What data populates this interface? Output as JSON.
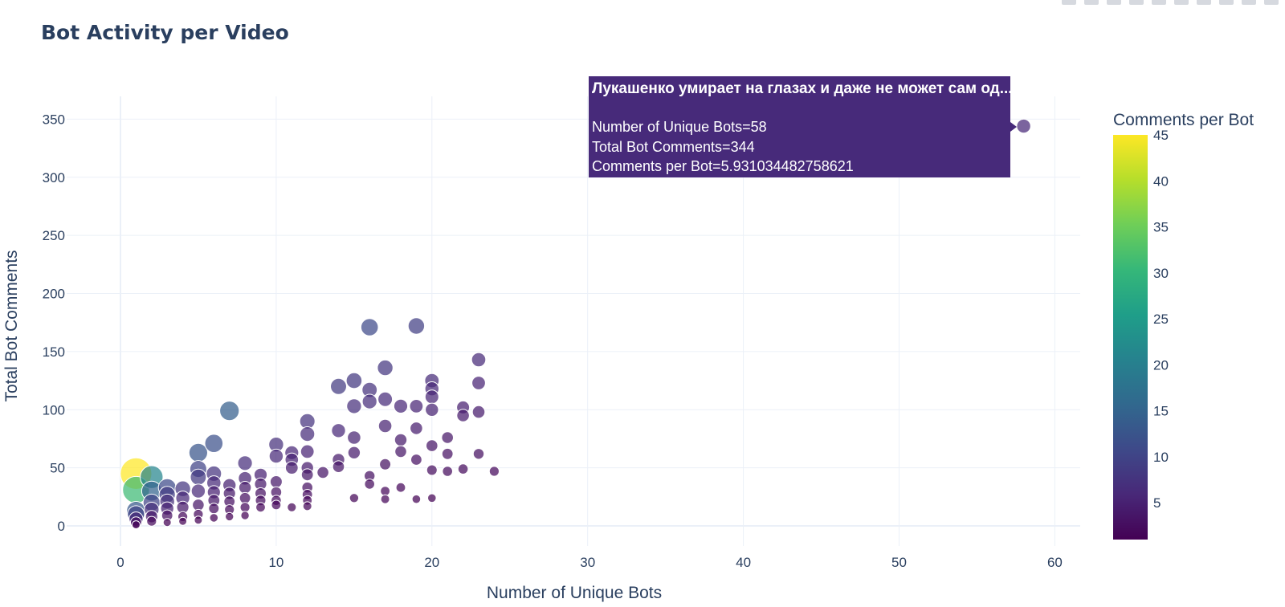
{
  "modebar_icons": [
    "camera-icon",
    "zoom-icon",
    "pan-icon",
    "box-select-icon",
    "lasso-icon",
    "zoom-in-icon",
    "zoom-out-icon",
    "autoscale-icon",
    "reset-icon",
    "plotly-logo-icon"
  ],
  "chart_data": {
    "type": "scatter",
    "title": "Bot Activity per Video",
    "xlabel": "Number of Unique Bots",
    "ylabel": "Total Bot Comments",
    "xlim": [
      -3.5,
      61.8
    ],
    "ylim": [
      -23,
      368
    ],
    "xticks": [
      0,
      10,
      20,
      30,
      40,
      50,
      60
    ],
    "yticks": [
      0,
      50,
      100,
      150,
      200,
      250,
      300,
      350
    ],
    "grid": true,
    "marker_size_by": "Comments per Bot",
    "colorbar": {
      "title": "Comments per Bot",
      "range": [
        1,
        45
      ],
      "ticks": [
        5,
        10,
        15,
        20,
        25,
        30,
        35,
        40,
        45
      ],
      "colorscale": "Viridis"
    },
    "points": [
      {
        "x": 1,
        "y": 45,
        "c": 45
      },
      {
        "x": 1,
        "y": 31,
        "c": 31
      },
      {
        "x": 2,
        "y": 42,
        "c": 21
      },
      {
        "x": 2,
        "y": 30,
        "c": 15
      },
      {
        "x": 2,
        "y": 20,
        "c": 10
      },
      {
        "x": 1,
        "y": 13,
        "c": 13
      },
      {
        "x": 1,
        "y": 10,
        "c": 10
      },
      {
        "x": 1,
        "y": 6,
        "c": 6
      },
      {
        "x": 1,
        "y": 3,
        "c": 3
      },
      {
        "x": 1,
        "y": 1,
        "c": 1
      },
      {
        "x": 2,
        "y": 14,
        "c": 7
      },
      {
        "x": 2,
        "y": 8,
        "c": 4
      },
      {
        "x": 2,
        "y": 4,
        "c": 2
      },
      {
        "x": 3,
        "y": 33,
        "c": 11
      },
      {
        "x": 3,
        "y": 27,
        "c": 9
      },
      {
        "x": 3,
        "y": 21,
        "c": 7
      },
      {
        "x": 3,
        "y": 15,
        "c": 5
      },
      {
        "x": 3,
        "y": 9,
        "c": 3
      },
      {
        "x": 3,
        "y": 3,
        "c": 1
      },
      {
        "x": 4,
        "y": 32,
        "c": 8
      },
      {
        "x": 4,
        "y": 24,
        "c": 6
      },
      {
        "x": 4,
        "y": 16,
        "c": 4
      },
      {
        "x": 4,
        "y": 8,
        "c": 2
      },
      {
        "x": 4,
        "y": 4,
        "c": 1
      },
      {
        "x": 5,
        "y": 63,
        "c": 12.6
      },
      {
        "x": 5,
        "y": 49,
        "c": 9.8
      },
      {
        "x": 5,
        "y": 42,
        "c": 8.4
      },
      {
        "x": 5,
        "y": 30,
        "c": 6
      },
      {
        "x": 5,
        "y": 18,
        "c": 3.6
      },
      {
        "x": 5,
        "y": 10,
        "c": 2
      },
      {
        "x": 5,
        "y": 5,
        "c": 1
      },
      {
        "x": 6,
        "y": 71,
        "c": 11.8
      },
      {
        "x": 6,
        "y": 45,
        "c": 7.5
      },
      {
        "x": 6,
        "y": 37,
        "c": 6.2
      },
      {
        "x": 6,
        "y": 29,
        "c": 4.8
      },
      {
        "x": 6,
        "y": 22,
        "c": 3.7
      },
      {
        "x": 6,
        "y": 15,
        "c": 2.5
      },
      {
        "x": 6,
        "y": 7,
        "c": 1.2
      },
      {
        "x": 7,
        "y": 99,
        "c": 14.1
      },
      {
        "x": 7,
        "y": 35,
        "c": 5
      },
      {
        "x": 7,
        "y": 28,
        "c": 4
      },
      {
        "x": 7,
        "y": 21,
        "c": 3
      },
      {
        "x": 7,
        "y": 14,
        "c": 2
      },
      {
        "x": 7,
        "y": 8,
        "c": 1.1
      },
      {
        "x": 8,
        "y": 54,
        "c": 6.8
      },
      {
        "x": 8,
        "y": 41,
        "c": 5.1
      },
      {
        "x": 8,
        "y": 33,
        "c": 4.1
      },
      {
        "x": 8,
        "y": 24,
        "c": 3
      },
      {
        "x": 8,
        "y": 16,
        "c": 2
      },
      {
        "x": 8,
        "y": 9,
        "c": 1.1
      },
      {
        "x": 9,
        "y": 44,
        "c": 4.9
      },
      {
        "x": 9,
        "y": 36,
        "c": 4
      },
      {
        "x": 9,
        "y": 28,
        "c": 3.1
      },
      {
        "x": 9,
        "y": 22,
        "c": 2.4
      },
      {
        "x": 9,
        "y": 16,
        "c": 1.8
      },
      {
        "x": 10,
        "y": 70,
        "c": 7
      },
      {
        "x": 10,
        "y": 60,
        "c": 6
      },
      {
        "x": 10,
        "y": 38,
        "c": 3.8
      },
      {
        "x": 10,
        "y": 29,
        "c": 2.9
      },
      {
        "x": 10,
        "y": 22,
        "c": 2.2
      },
      {
        "x": 10,
        "y": 18,
        "c": 1.8
      },
      {
        "x": 11,
        "y": 63,
        "c": 5.7
      },
      {
        "x": 11,
        "y": 57,
        "c": 5.2
      },
      {
        "x": 11,
        "y": 50,
        "c": 4.5
      },
      {
        "x": 11,
        "y": 16,
        "c": 1.5
      },
      {
        "x": 12,
        "y": 90,
        "c": 7.5
      },
      {
        "x": 12,
        "y": 79,
        "c": 6.6
      },
      {
        "x": 12,
        "y": 64,
        "c": 5.3
      },
      {
        "x": 12,
        "y": 50,
        "c": 4.2
      },
      {
        "x": 12,
        "y": 44,
        "c": 3.7
      },
      {
        "x": 12,
        "y": 33,
        "c": 2.8
      },
      {
        "x": 12,
        "y": 27,
        "c": 2.3
      },
      {
        "x": 12,
        "y": 22,
        "c": 1.8
      },
      {
        "x": 12,
        "y": 17,
        "c": 1.4
      },
      {
        "x": 13,
        "y": 46,
        "c": 3.5
      },
      {
        "x": 14,
        "y": 120,
        "c": 8.6
      },
      {
        "x": 14,
        "y": 82,
        "c": 5.9
      },
      {
        "x": 14,
        "y": 57,
        "c": 4.1
      },
      {
        "x": 14,
        "y": 51,
        "c": 3.6
      },
      {
        "x": 15,
        "y": 125,
        "c": 8.3
      },
      {
        "x": 15,
        "y": 103,
        "c": 6.9
      },
      {
        "x": 15,
        "y": 76,
        "c": 5.1
      },
      {
        "x": 15,
        "y": 63,
        "c": 4.2
      },
      {
        "x": 15,
        "y": 24,
        "c": 1.6
      },
      {
        "x": 16,
        "y": 171,
        "c": 10.7
      },
      {
        "x": 16,
        "y": 117,
        "c": 7.3
      },
      {
        "x": 16,
        "y": 107,
        "c": 6.7
      },
      {
        "x": 16,
        "y": 43,
        "c": 2.7
      },
      {
        "x": 16,
        "y": 36,
        "c": 2.2
      },
      {
        "x": 17,
        "y": 136,
        "c": 8
      },
      {
        "x": 17,
        "y": 109,
        "c": 6.4
      },
      {
        "x": 17,
        "y": 86,
        "c": 5.1
      },
      {
        "x": 17,
        "y": 53,
        "c": 3.1
      },
      {
        "x": 17,
        "y": 30,
        "c": 1.8
      },
      {
        "x": 17,
        "y": 23,
        "c": 1.4
      },
      {
        "x": 18,
        "y": 103,
        "c": 5.7
      },
      {
        "x": 18,
        "y": 74,
        "c": 4.1
      },
      {
        "x": 18,
        "y": 64,
        "c": 3.6
      },
      {
        "x": 18,
        "y": 33,
        "c": 1.8
      },
      {
        "x": 19,
        "y": 172,
        "c": 9.1
      },
      {
        "x": 19,
        "y": 103,
        "c": 5.4
      },
      {
        "x": 19,
        "y": 84,
        "c": 4.4
      },
      {
        "x": 19,
        "y": 57,
        "c": 3
      },
      {
        "x": 19,
        "y": 23,
        "c": 1.2
      },
      {
        "x": 20,
        "y": 125,
        "c": 6.3
      },
      {
        "x": 20,
        "y": 118,
        "c": 5.9
      },
      {
        "x": 20,
        "y": 111,
        "c": 5.6
      },
      {
        "x": 20,
        "y": 100,
        "c": 5
      },
      {
        "x": 20,
        "y": 69,
        "c": 3.5
      },
      {
        "x": 20,
        "y": 48,
        "c": 2.4
      },
      {
        "x": 20,
        "y": 24,
        "c": 1.2
      },
      {
        "x": 21,
        "y": 76,
        "c": 3.6
      },
      {
        "x": 21,
        "y": 62,
        "c": 3
      },
      {
        "x": 21,
        "y": 47,
        "c": 2.2
      },
      {
        "x": 22,
        "y": 102,
        "c": 4.6
      },
      {
        "x": 22,
        "y": 95,
        "c": 4.3
      },
      {
        "x": 22,
        "y": 49,
        "c": 2.2
      },
      {
        "x": 23,
        "y": 143,
        "c": 6.2
      },
      {
        "x": 23,
        "y": 123,
        "c": 5.3
      },
      {
        "x": 23,
        "y": 98,
        "c": 4.3
      },
      {
        "x": 23,
        "y": 62,
        "c": 2.7
      },
      {
        "x": 24,
        "y": 47,
        "c": 2
      },
      {
        "x": 58,
        "y": 344,
        "c": 5.931034482758621
      }
    ],
    "hover": {
      "title": "Лукашенко умирает на глазах и даже не может сам од...",
      "line1": "Number of Unique Bots=58",
      "line2": "Total Bot Comments=344",
      "line3": "Comments per Bot=5.931034482758621",
      "color": "#472a7a"
    }
  }
}
